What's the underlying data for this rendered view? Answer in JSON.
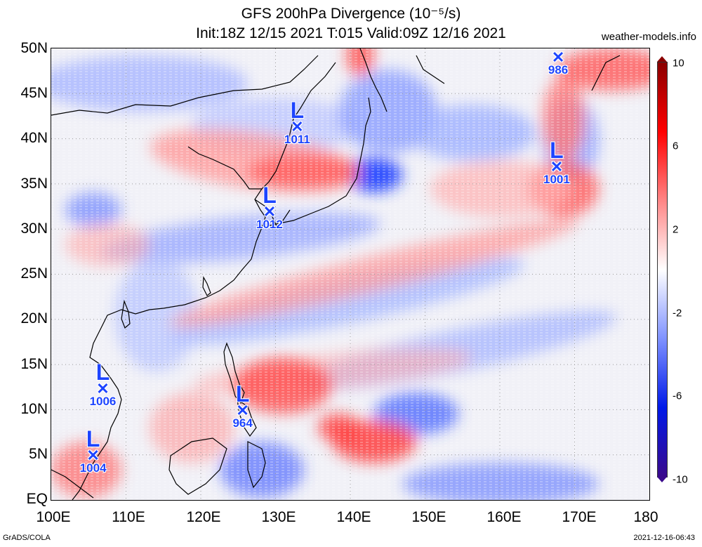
{
  "title": {
    "line1": "GFS 200hPa Divergence (10⁻⁵/s)",
    "line2": "Init:18Z 12/15 2021 T:015 Valid:09Z 12/16 2021"
  },
  "credit": "weather-models.info",
  "footer": {
    "left": "GrADS/COLA",
    "right": "2021-12-16-06:43"
  },
  "axes": {
    "lat_labels": [
      "50N",
      "45N",
      "40N",
      "35N",
      "30N",
      "25N",
      "20N",
      "15N",
      "10N",
      "5N",
      "EQ"
    ],
    "lon_labels": [
      "100E",
      "110E",
      "120E",
      "130E",
      "140E",
      "150E",
      "160E",
      "170E",
      "180"
    ],
    "lat_range": [
      0,
      50
    ],
    "lon_range": [
      100,
      180
    ]
  },
  "colorbar": {
    "labels": [
      "10",
      "6",
      "2",
      "-2",
      "-6",
      "-10"
    ],
    "colors": [
      "#3a0a8c",
      "#0019e8",
      "#7f92ff",
      "#ffffff",
      "#ff8585",
      "#ff0000",
      "#8a0000"
    ]
  },
  "lows": [
    {
      "id": "low-1011",
      "lat": 41.2,
      "lon": 132.9,
      "pressure": "1011"
    },
    {
      "id": "low-1012",
      "lat": 31.8,
      "lon": 129.2,
      "pressure": "1012"
    },
    {
      "id": "low-1001",
      "lat": 36.8,
      "lon": 167.6,
      "pressure": "1001"
    },
    {
      "id": "low-986",
      "lat": 48.9,
      "lon": 167.8,
      "pressure": "986"
    },
    {
      "id": "low-1006",
      "lat": 12.2,
      "lon": 106.9,
      "pressure": "1006"
    },
    {
      "id": "low-964",
      "lat": 9.8,
      "lon": 125.6,
      "pressure": "964"
    },
    {
      "id": "low-1004",
      "lat": 4.8,
      "lon": 105.6,
      "pressure": "1004"
    }
  ]
}
